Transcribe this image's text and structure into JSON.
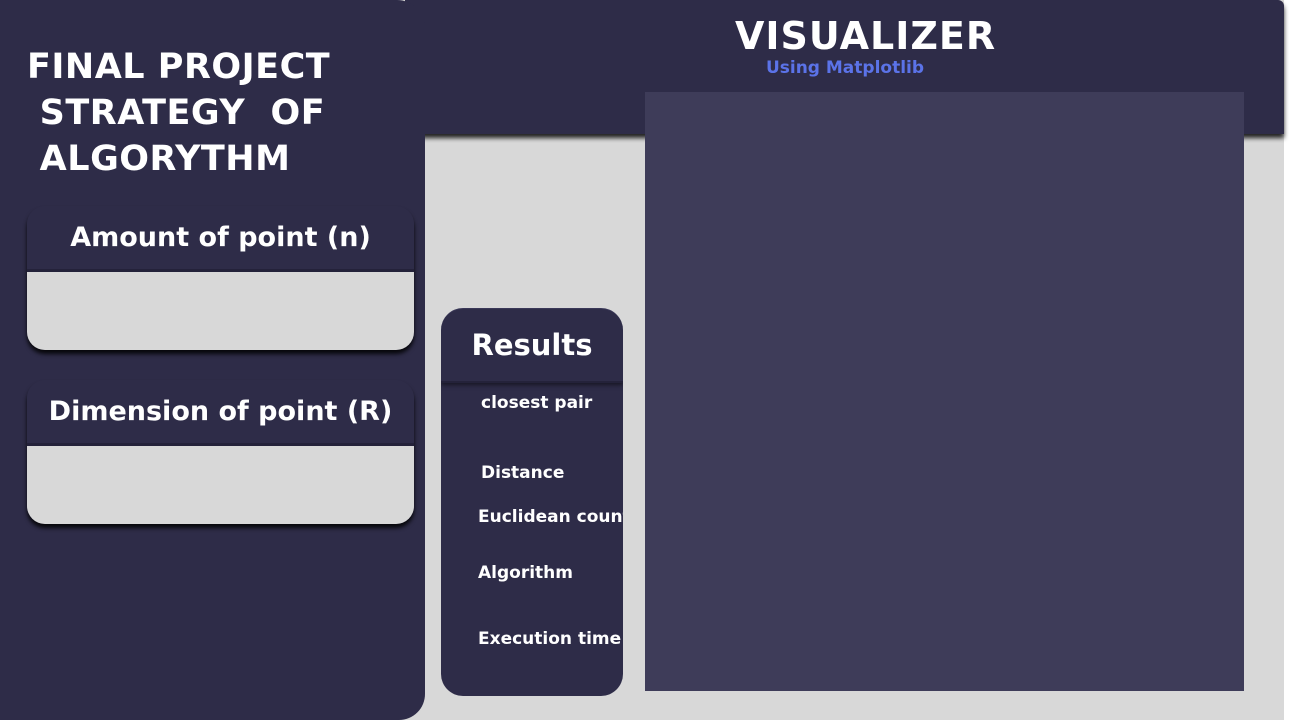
{
  "header": {
    "title": "VISUALIZER",
    "subtitle": "Using Matplotlib"
  },
  "sidebar": {
    "project_title_lines": [
      "FINAL PROJECT",
      " STRATEGY  OF",
      " ALGORYTHM"
    ],
    "inputs": [
      {
        "label": "Amount of point (n)",
        "value": ""
      },
      {
        "label": "Dimension of point (R)",
        "value": ""
      }
    ]
  },
  "results": {
    "title": "Results",
    "labels": [
      "closest pair",
      "Distance",
      "Euclidean count",
      "Algorithm",
      "Execution time"
    ]
  },
  "colors": {
    "panel": "#2e2c48",
    "background": "#d8d8d8",
    "plot_background": "#3e3c59",
    "accent": "#5b73e8"
  }
}
